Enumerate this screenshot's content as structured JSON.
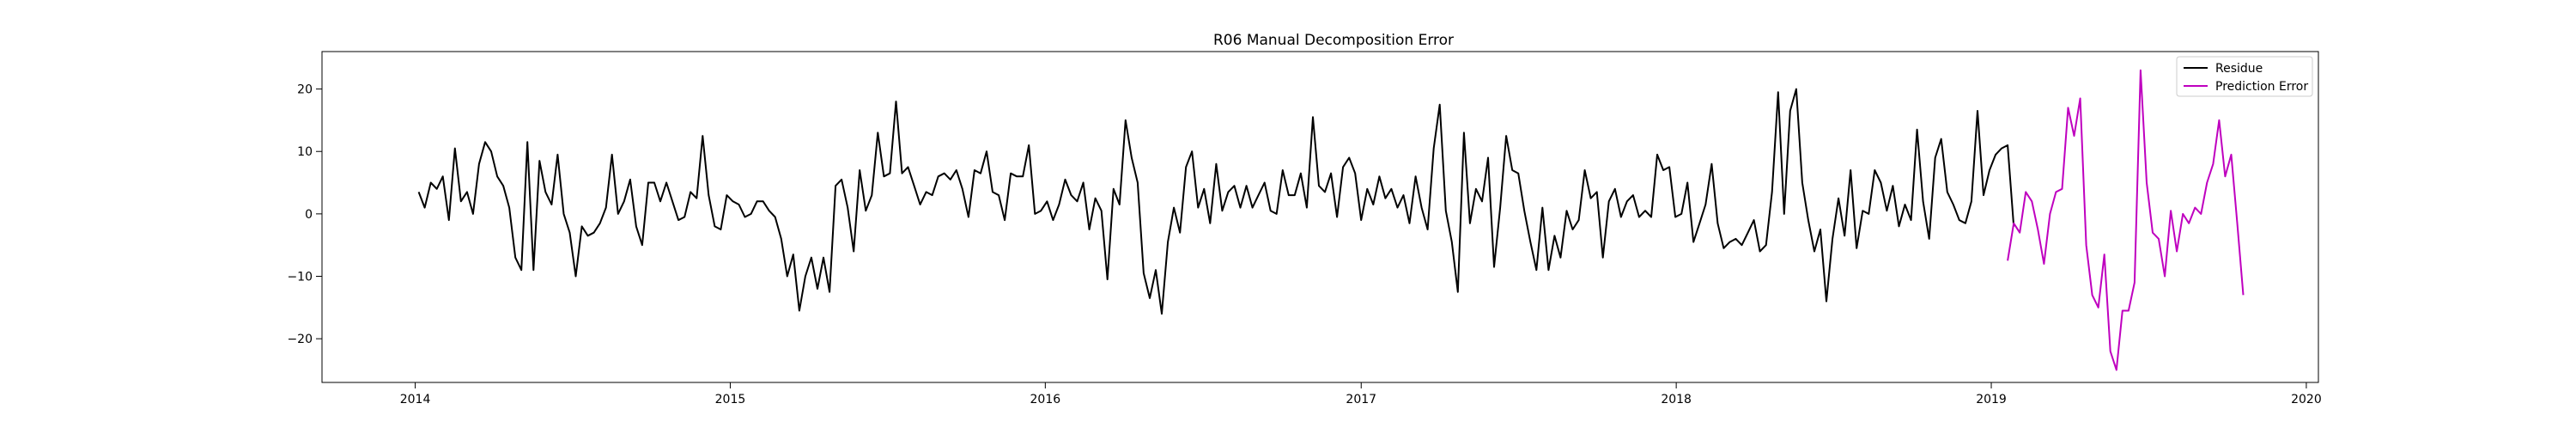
{
  "chart_data": {
    "type": "line",
    "title": "R06 Manual Decomposition Error",
    "xlabel": "",
    "ylabel": "",
    "x_axis_type": "time",
    "xlim": [
      "2013-09-15",
      "2020-01-15"
    ],
    "ylim": [
      -27,
      26
    ],
    "x_ticks": [
      {
        "value": "2014-01-01",
        "label": "2014"
      },
      {
        "value": "2015-01-01",
        "label": "2015"
      },
      {
        "value": "2016-01-01",
        "label": "2016"
      },
      {
        "value": "2017-01-01",
        "label": "2017"
      },
      {
        "value": "2018-01-01",
        "label": "2018"
      },
      {
        "value": "2019-01-01",
        "label": "2019"
      },
      {
        "value": "2020-01-01",
        "label": "2020"
      }
    ],
    "y_ticks": [
      {
        "value": 20,
        "label": "20"
      },
      {
        "value": 10,
        "label": "10"
      },
      {
        "value": 0,
        "label": "0"
      },
      {
        "value": -10,
        "label": "−10"
      },
      {
        "value": -20,
        "label": "−20"
      }
    ],
    "grid": false,
    "legend_position": "top-right",
    "series": [
      {
        "name": "Residue",
        "color": "#000000",
        "start_date": "2014-01-05",
        "step": "week",
        "values": [
          3.5,
          1,
          5,
          4,
          6,
          -1,
          10.5,
          2,
          3.5,
          0,
          8,
          11.5,
          10,
          6,
          4.5,
          1,
          -7,
          -9,
          11.5,
          -9,
          8.5,
          3.5,
          1.5,
          9.5,
          0,
          -3,
          -10,
          -2,
          -3.5,
          -3,
          -1.5,
          1,
          9.5,
          0,
          2,
          5.5,
          -2,
          -5,
          5,
          5,
          2,
          5,
          2,
          -1,
          -0.5,
          3.5,
          2.5,
          12.5,
          3,
          -2,
          -2.5,
          3,
          2,
          1.5,
          -0.5,
          0,
          2,
          2,
          0.5,
          -0.5,
          -4,
          -10,
          -6.5,
          -15.5,
          -10,
          -7,
          -12,
          -7,
          -12.5,
          4.5,
          5.5,
          1,
          -6,
          7,
          0.5,
          3,
          13,
          6,
          6.5,
          18,
          6.5,
          7.5,
          4.5,
          1.5,
          3.5,
          3,
          6,
          6.5,
          5.5,
          7,
          4,
          -0.5,
          7,
          6.5,
          10,
          3.5,
          3,
          -1,
          6.5,
          6,
          6,
          11,
          0,
          0.5,
          2,
          -1,
          1.5,
          5.5,
          3,
          2,
          5,
          -2.5,
          2.5,
          0.5,
          -10.5,
          4,
          1.5,
          15,
          9,
          5,
          -9.5,
          -13.5,
          -9,
          -16,
          -4.5,
          1,
          -3,
          7.5,
          10,
          1,
          4,
          -1.5,
          8,
          0.5,
          3.5,
          4.5,
          1,
          4.5,
          1,
          3,
          5,
          0.5,
          0,
          7,
          3,
          3,
          6.5,
          1,
          15.5,
          4.5,
          3.5,
          6.5,
          -0.5,
          7.5,
          9,
          6.5,
          -1,
          4,
          1.5,
          6,
          2.5,
          4,
          1,
          3,
          -1.5,
          6,
          1,
          -2.5,
          10.5,
          17.5,
          0.5,
          -4.5,
          -12.5,
          13,
          -1.5,
          4,
          2,
          9,
          -8.5,
          1,
          12.5,
          7,
          6.5,
          0.5,
          -4.5,
          -9,
          1,
          -9,
          -3.5,
          -7,
          0.5,
          -2.5,
          -1,
          7,
          2.5,
          3.5,
          -7,
          2,
          4,
          -0.5,
          2,
          3,
          -0.5,
          0.5,
          -0.5,
          9.5,
          7,
          7.5,
          -0.5,
          0,
          5,
          -4.5,
          -1.5,
          1.5,
          8,
          -1.5,
          -5.5,
          -4.5,
          -4,
          -5,
          -3,
          -1,
          -6,
          -5,
          3.5,
          19.5,
          0,
          16.5,
          20,
          5,
          -1,
          -6,
          -2.5,
          -14,
          -4,
          2.5,
          -3.5,
          7,
          -5.5,
          0.5,
          0,
          7,
          5,
          0.5,
          4.5,
          -2,
          1.5,
          -1,
          13.5,
          2,
          -4,
          9,
          12,
          3.5,
          1.5,
          -1,
          -1.5,
          2,
          16.5,
          3,
          7,
          9.5,
          10.5,
          11,
          -2
        ]
      },
      {
        "name": "Prediction Error",
        "color": "#bf00bf",
        "start_date": "2019-01-20",
        "step": "week",
        "values": [
          -7.5,
          -1.5,
          -3,
          3.5,
          2,
          -2.5,
          -8,
          0,
          3.5,
          4,
          17,
          12.5,
          18.5,
          -5,
          -13,
          -15,
          -6.5,
          -22,
          -25,
          -15.5,
          -15.5,
          -11,
          23,
          5,
          -3,
          -4,
          -10,
          0.5,
          -6,
          0,
          -1.5,
          1,
          0,
          5,
          8,
          15,
          6,
          9.5,
          -1.5,
          -13
        ]
      }
    ]
  }
}
